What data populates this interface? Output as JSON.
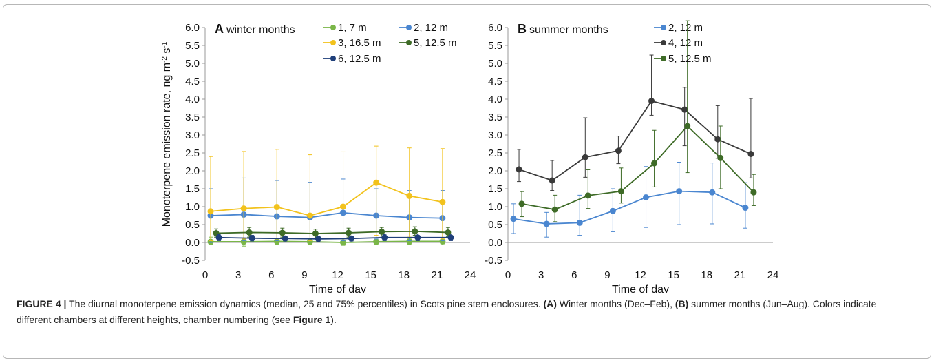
{
  "caption": {
    "label": "FIGURE 4 |",
    "text1": " The diurnal monoterpene emission dynamics (median, 25 and 75% percentiles) in Scots pine stem enclosures. ",
    "ref_a": "(A)",
    "text2": " Winter months (Dec–Feb), ",
    "ref_b": "(B)",
    "text3": " summer months (Jun–Aug). Colors indicate different chambers at different heights, chamber numbering (see ",
    "fig_ref": "Figure 1",
    "text4": ")."
  },
  "chart_data": [
    {
      "type": "line",
      "panel_letter": "A",
      "title": "winter months",
      "xlabel": "Time of day",
      "ylabel": "Monoterpene emission rate, ng m-2 s-1",
      "ylabel_main": "Monoterpene emission rate, ng m",
      "ylabel_sup1": "-2",
      "ylabel_mid": " s",
      "ylabel_sup2": "-1",
      "xlim": [
        0,
        24
      ],
      "ylim": [
        -0.5,
        6.0
      ],
      "xticks": [
        "0",
        "3",
        "6",
        "9",
        "12",
        "15",
        "18",
        "21",
        "24"
      ],
      "yticks": [
        "-0.5",
        "0.0",
        "0.5",
        "1.0",
        "1.5",
        "2.0",
        "2.5",
        "3.0",
        "3.5",
        "4.0",
        "4.5",
        "5.0",
        "5.5",
        "6.0"
      ],
      "legend_position": "top",
      "series": [
        {
          "name": "1, 7 m",
          "color": "#7ab648",
          "x": [
            0.5,
            3.5,
            6.5,
            9.5,
            12.5,
            15.5,
            18.5,
            21.5
          ],
          "y": [
            0.02,
            0.02,
            0.03,
            0.02,
            0.0,
            0.02,
            0.03,
            0.03
          ],
          "lo": [
            -0.05,
            -0.1,
            -0.05,
            -0.05,
            -0.08,
            -0.05,
            -0.05,
            -0.04
          ],
          "hi": [
            0.15,
            0.1,
            0.1,
            0.08,
            0.1,
            0.08,
            0.1,
            0.1
          ]
        },
        {
          "name": "2, 12 m",
          "color": "#4a86d0",
          "x": [
            0.5,
            3.5,
            6.5,
            9.5,
            12.5,
            15.5,
            18.5,
            21.5
          ],
          "y": [
            0.75,
            0.78,
            0.73,
            0.7,
            0.83,
            0.75,
            0.7,
            0.68
          ],
          "lo": [
            0.0,
            0.05,
            0.05,
            0.05,
            0.05,
            0.1,
            0.05,
            0.05
          ],
          "hi": [
            1.5,
            1.8,
            1.73,
            1.68,
            1.77,
            1.5,
            1.45,
            1.45
          ]
        },
        {
          "name": "3, 16.5 m",
          "color": "#f2c21c",
          "x": [
            0.5,
            3.5,
            6.5,
            9.5,
            12.5,
            15.5,
            18.5,
            21.5
          ],
          "y": [
            0.87,
            0.95,
            0.99,
            0.75,
            1.0,
            1.67,
            1.3,
            1.13
          ],
          "lo": [
            0.05,
            0.1,
            0.1,
            0.05,
            0.1,
            0.2,
            0.15,
            0.1
          ],
          "hi": [
            2.4,
            2.54,
            2.6,
            2.45,
            2.53,
            2.69,
            2.64,
            2.62
          ]
        },
        {
          "name": "5, 12.5 m",
          "color": "#3e6b27",
          "x": [
            1.0,
            4.0,
            7.0,
            10.0,
            13.0,
            16.0,
            19.0,
            22.0
          ],
          "y": [
            0.26,
            0.28,
            0.27,
            0.25,
            0.27,
            0.3,
            0.31,
            0.28
          ],
          "lo": [
            0.15,
            0.15,
            0.15,
            0.12,
            0.15,
            0.18,
            0.2,
            0.16
          ],
          "hi": [
            0.38,
            0.42,
            0.4,
            0.37,
            0.4,
            0.42,
            0.44,
            0.42
          ]
        },
        {
          "name": "6, 12.5 m",
          "color": "#1f3f7a",
          "x": [
            1.25,
            4.25,
            7.25,
            10.25,
            13.25,
            16.25,
            19.25,
            22.25
          ],
          "y": [
            0.14,
            0.12,
            0.11,
            0.1,
            0.11,
            0.14,
            0.14,
            0.14
          ],
          "lo": [
            0.05,
            0.04,
            0.04,
            0.03,
            0.04,
            0.05,
            0.05,
            0.05
          ],
          "hi": [
            0.23,
            0.2,
            0.18,
            0.17,
            0.18,
            0.23,
            0.24,
            0.24
          ]
        }
      ]
    },
    {
      "type": "line",
      "panel_letter": "B",
      "title": "summer months",
      "xlabel": "Time of day",
      "xlim": [
        0,
        24
      ],
      "ylim": [
        -0.5,
        6.0
      ],
      "xticks": [
        "0",
        "3",
        "6",
        "9",
        "12",
        "15",
        "18",
        "21",
        "24"
      ],
      "yticks": [
        "-0.5",
        "0.0",
        "0.5",
        "1.0",
        "1.5",
        "2.0",
        "2.5",
        "3.0",
        "3.5",
        "4.0",
        "4.5",
        "5.0",
        "5.5",
        "6.0"
      ],
      "legend_position": "top-right",
      "series": [
        {
          "name": "2, 12 m",
          "color": "#4a86d0",
          "x": [
            0.5,
            3.5,
            6.5,
            9.5,
            12.5,
            15.5,
            18.5,
            21.5
          ],
          "y": [
            0.66,
            0.52,
            0.55,
            0.88,
            1.26,
            1.43,
            1.4,
            0.97
          ],
          "lo": [
            0.25,
            0.15,
            0.2,
            0.3,
            0.42,
            0.5,
            0.52,
            0.4
          ],
          "hi": [
            1.08,
            0.84,
            1.32,
            1.5,
            2.12,
            2.24,
            2.22,
            1.67
          ]
        },
        {
          "name": "4, 12 m",
          "color": "#3a3a3a",
          "x": [
            1.0,
            4.0,
            7.0,
            10.0,
            13.0,
            16.0,
            19.0,
            22.0
          ],
          "y": [
            2.04,
            1.73,
            2.38,
            2.56,
            3.95,
            3.71,
            2.88,
            2.47
          ],
          "lo": [
            1.7,
            1.45,
            1.82,
            2.2,
            3.55,
            2.7,
            2.35,
            1.8
          ],
          "hi": [
            2.6,
            2.29,
            3.48,
            2.97,
            5.23,
            4.33,
            3.82,
            4.02
          ]
        },
        {
          "name": "5, 12.5 m",
          "color": "#3e6b27",
          "x": [
            1.25,
            4.25,
            7.25,
            10.25,
            13.25,
            16.25,
            19.25,
            22.25
          ],
          "y": [
            1.08,
            0.92,
            1.31,
            1.43,
            2.21,
            3.25,
            2.36,
            1.4
          ],
          "lo": [
            0.72,
            0.58,
            0.95,
            1.1,
            1.55,
            1.95,
            1.5,
            1.03
          ],
          "hi": [
            1.42,
            1.32,
            2.03,
            2.08,
            3.13,
            6.19,
            3.25,
            1.9
          ]
        }
      ]
    }
  ]
}
